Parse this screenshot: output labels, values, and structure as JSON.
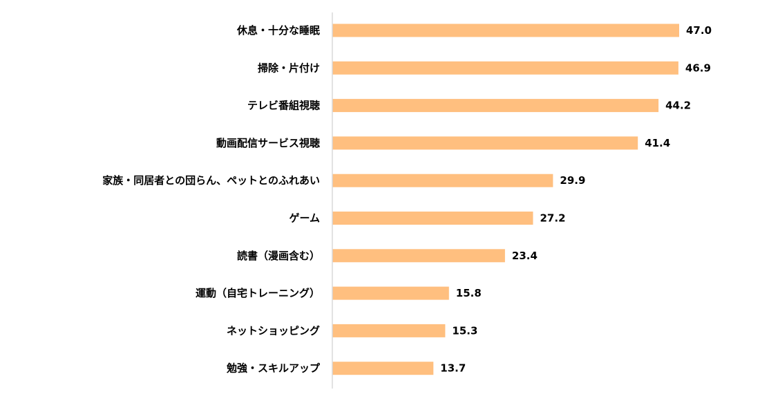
{
  "chart_data": {
    "type": "bar",
    "orientation": "horizontal",
    "categories": [
      "休息・十分な睡眠",
      "掃除・片付け",
      "テレビ番組視聴",
      "動画配信サービス視聴",
      "家族・同居者との団らん、ペットとのふれあい",
      "ゲーム",
      "読書（漫画含む）",
      "運動（自宅トレーニング）",
      "ネットショッピング",
      "勉強・スキルアップ"
    ],
    "values": [
      47.0,
      46.9,
      44.2,
      41.4,
      29.9,
      27.2,
      23.4,
      15.8,
      15.3,
      13.7
    ],
    "value_labels": [
      "47.0",
      "46.9",
      "44.2",
      "41.4",
      "29.9",
      "27.2",
      "23.4",
      "15.8",
      "15.3",
      "13.7"
    ],
    "xlim": [
      0,
      50
    ],
    "grid": false,
    "legend": "none",
    "bar_color": "#FFBF7F",
    "axis_color": "#D9D9D9",
    "title": "",
    "xlabel": "",
    "ylabel": ""
  }
}
